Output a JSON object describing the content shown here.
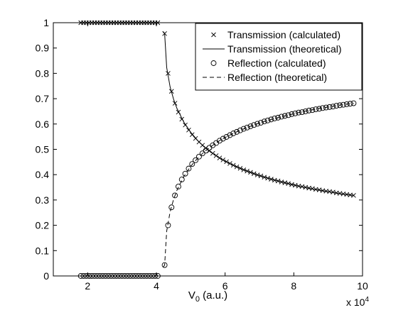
{
  "chart_data": {
    "type": "line",
    "title": "",
    "xlabel": "V",
    "xlabel_subscript": "0",
    "xlabel_suffix": " (a.u.)",
    "ylabel": "",
    "x_exponent_label": "x 10",
    "x_exponent_power": "4",
    "xlim": [
      1,
      10
    ],
    "ylim": [
      0,
      1
    ],
    "x_ticks": [
      2,
      4,
      6,
      8,
      10
    ],
    "x_tick_labels": [
      "2",
      "4",
      "6",
      "8",
      "10"
    ],
    "y_ticks": [
      0,
      0.1,
      0.2,
      0.3,
      0.4,
      0.5,
      0.6,
      0.7,
      0.8,
      0.9,
      1
    ],
    "y_tick_labels": [
      "0",
      "0.1",
      "0.2",
      "0.3",
      "0.4",
      "0.5",
      "0.6",
      "0.7",
      "0.8",
      "0.9",
      "1"
    ],
    "grid": false,
    "legend_position": "top-right",
    "barrier_V0": 4.13,
    "series": [
      {
        "name": "Transmission (calculated)",
        "style": "markers-x",
        "x": [
          1.8,
          1.88,
          1.96,
          2.04,
          2.12,
          2.2,
          2.28,
          2.36,
          2.44,
          2.52,
          2.6,
          2.68,
          2.76,
          2.84,
          2.92,
          3.0,
          3.08,
          3.16,
          3.24,
          3.32,
          3.4,
          3.48,
          3.56,
          3.64,
          3.72,
          3.8,
          3.88,
          3.96,
          4.04,
          4.24,
          4.34,
          4.44,
          4.54,
          4.64,
          4.74,
          4.84,
          4.94,
          5.04,
          5.14,
          5.24,
          5.34,
          5.44,
          5.54,
          5.64,
          5.74,
          5.84,
          5.94,
          6.04,
          6.14,
          6.24,
          6.34,
          6.44,
          6.54,
          6.64,
          6.74,
          6.84,
          6.94,
          7.04,
          7.14,
          7.24,
          7.34,
          7.44,
          7.54,
          7.64,
          7.74,
          7.84,
          7.94,
          8.04,
          8.14,
          8.24,
          8.34,
          8.44,
          8.54,
          8.64,
          8.74,
          8.84,
          8.94,
          9.04,
          9.14,
          9.24,
          9.34,
          9.44,
          9.54,
          9.64,
          9.74
        ],
        "y": [
          1,
          1,
          1,
          1,
          1,
          1,
          1,
          1,
          1,
          1,
          1,
          1,
          1,
          1,
          1,
          1,
          1,
          1,
          1,
          1,
          1,
          1,
          1,
          1,
          1,
          1,
          1,
          1,
          1,
          0.957,
          0.8,
          0.729,
          0.682,
          0.647,
          0.619,
          0.596,
          0.576,
          0.558,
          0.543,
          0.529,
          0.516,
          0.505,
          0.494,
          0.484,
          0.475,
          0.466,
          0.458,
          0.451,
          0.444,
          0.437,
          0.431,
          0.425,
          0.419,
          0.414,
          0.409,
          0.404,
          0.399,
          0.395,
          0.39,
          0.386,
          0.382,
          0.378,
          0.375,
          0.371,
          0.368,
          0.365,
          0.361,
          0.358,
          0.355,
          0.353,
          0.35,
          0.347,
          0.345,
          0.342,
          0.34,
          0.337,
          0.335,
          0.333,
          0.331,
          0.328,
          0.326,
          0.324,
          0.322,
          0.32,
          0.318
        ]
      },
      {
        "name": "Transmission (theoretical)",
        "style": "solid",
        "x": [
          4.2,
          4.24,
          4.3,
          4.4,
          4.5,
          4.6,
          4.8,
          5.0,
          5.2,
          5.4,
          5.6,
          5.8,
          6.0,
          6.3,
          6.6,
          7.0,
          7.4,
          7.8,
          8.2,
          8.6,
          9.0,
          9.4,
          9.74
        ],
        "y": [
          0.965,
          0.957,
          0.823,
          0.746,
          0.698,
          0.661,
          0.607,
          0.567,
          0.535,
          0.509,
          0.488,
          0.469,
          0.453,
          0.433,
          0.416,
          0.396,
          0.38,
          0.366,
          0.353,
          0.342,
          0.333,
          0.324,
          0.318
        ]
      },
      {
        "name": "Reflection (calculated)",
        "style": "markers-o",
        "x": [
          1.8,
          1.88,
          1.96,
          2.04,
          2.12,
          2.2,
          2.28,
          2.36,
          2.44,
          2.52,
          2.6,
          2.68,
          2.76,
          2.84,
          2.92,
          3.0,
          3.08,
          3.16,
          3.24,
          3.32,
          3.4,
          3.48,
          3.56,
          3.64,
          3.72,
          3.8,
          3.88,
          3.96,
          4.04,
          4.24,
          4.34,
          4.44,
          4.54,
          4.64,
          4.74,
          4.84,
          4.94,
          5.04,
          5.14,
          5.24,
          5.34,
          5.44,
          5.54,
          5.64,
          5.74,
          5.84,
          5.94,
          6.04,
          6.14,
          6.24,
          6.34,
          6.44,
          6.54,
          6.64,
          6.74,
          6.84,
          6.94,
          7.04,
          7.14,
          7.24,
          7.34,
          7.44,
          7.54,
          7.64,
          7.74,
          7.84,
          7.94,
          8.04,
          8.14,
          8.24,
          8.34,
          8.44,
          8.54,
          8.64,
          8.74,
          8.84,
          8.94,
          9.04,
          9.14,
          9.24,
          9.34,
          9.44,
          9.54,
          9.64,
          9.74
        ],
        "y": [
          0,
          0,
          0,
          0,
          0,
          0,
          0,
          0,
          0,
          0,
          0,
          0,
          0,
          0,
          0,
          0,
          0,
          0,
          0,
          0,
          0,
          0,
          0,
          0,
          0,
          0,
          0,
          0,
          0,
          0.043,
          0.2,
          0.271,
          0.318,
          0.353,
          0.381,
          0.404,
          0.424,
          0.442,
          0.457,
          0.471,
          0.484,
          0.495,
          0.506,
          0.516,
          0.525,
          0.534,
          0.542,
          0.549,
          0.556,
          0.563,
          0.569,
          0.575,
          0.581,
          0.586,
          0.591,
          0.596,
          0.601,
          0.605,
          0.61,
          0.614,
          0.618,
          0.622,
          0.625,
          0.629,
          0.632,
          0.635,
          0.639,
          0.642,
          0.645,
          0.647,
          0.65,
          0.653,
          0.655,
          0.658,
          0.66,
          0.663,
          0.665,
          0.667,
          0.669,
          0.672,
          0.674,
          0.676,
          0.678,
          0.68,
          0.682
        ]
      },
      {
        "name": "Reflection (theoretical)",
        "style": "dashed",
        "x": [
          4.2,
          4.24,
          4.3,
          4.4,
          4.5,
          4.6,
          4.8,
          5.0,
          5.2,
          5.4,
          5.6,
          5.8,
          6.0,
          6.3,
          6.6,
          7.0,
          7.4,
          7.8,
          8.2,
          8.6,
          9.0,
          9.4,
          9.74
        ],
        "y": [
          0.035,
          0.043,
          0.177,
          0.254,
          0.302,
          0.339,
          0.393,
          0.433,
          0.465,
          0.491,
          0.512,
          0.531,
          0.547,
          0.567,
          0.584,
          0.604,
          0.62,
          0.634,
          0.647,
          0.658,
          0.667,
          0.676,
          0.682
        ]
      }
    ]
  }
}
